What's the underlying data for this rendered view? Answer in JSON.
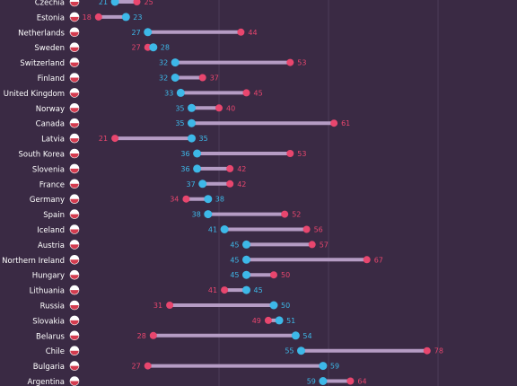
{
  "theme": {
    "background": "#3a2a44",
    "gridline": "#4c3c58",
    "connector": "#b59cc4",
    "blue": "#3db8e8",
    "red": "#e8466e",
    "label": "#ffffff"
  },
  "chart_data": {
    "type": "dumbbell",
    "title": "",
    "xlabel": "",
    "ylabel": "",
    "grid": true,
    "xlim": [
      0,
      100
    ],
    "series": [
      {
        "color": "#3db8e8"
      },
      {
        "color": "#e8466e"
      }
    ],
    "rows": [
      {
        "country": "Czechia",
        "flag": "czechia-flag",
        "blue": 21,
        "red": 25
      },
      {
        "country": "Estonia",
        "flag": "estonia-flag",
        "blue": 23,
        "red": 18
      },
      {
        "country": "Netherlands",
        "flag": "netherlands-flag",
        "blue": 27,
        "red": 44
      },
      {
        "country": "Sweden",
        "flag": "sweden-flag",
        "blue": 28,
        "red": 27
      },
      {
        "country": "Switzerland",
        "flag": "switzerland-flag",
        "blue": 32,
        "red": 53
      },
      {
        "country": "Finland",
        "flag": "finland-flag",
        "blue": 32,
        "red": 37
      },
      {
        "country": "United Kingdom",
        "flag": "united-kingdom-flag",
        "blue": 33,
        "red": 45
      },
      {
        "country": "Norway",
        "flag": "norway-flag",
        "blue": 35,
        "red": 40
      },
      {
        "country": "Canada",
        "flag": "canada-flag",
        "blue": 35,
        "red": 61
      },
      {
        "country": "Latvia",
        "flag": "latvia-flag",
        "blue": 35,
        "red": 21
      },
      {
        "country": "South Korea",
        "flag": "south-korea-flag",
        "blue": 36,
        "red": 53
      },
      {
        "country": "Slovenia",
        "flag": "slovenia-flag",
        "blue": 36,
        "red": 42
      },
      {
        "country": "France",
        "flag": "france-flag",
        "blue": 37,
        "red": 42
      },
      {
        "country": "Germany",
        "flag": "germany-flag",
        "blue": 38,
        "red": 34
      },
      {
        "country": "Spain",
        "flag": "spain-flag",
        "blue": 38,
        "red": 52
      },
      {
        "country": "Iceland",
        "flag": "iceland-flag",
        "blue": 41,
        "red": 56
      },
      {
        "country": "Austria",
        "flag": "austria-flag",
        "blue": 45,
        "red": 57
      },
      {
        "country": "Northern Ireland",
        "flag": "northern-ireland-flag",
        "blue": 45,
        "red": 67
      },
      {
        "country": "Hungary",
        "flag": "hungary-flag",
        "blue": 45,
        "red": 50
      },
      {
        "country": "Lithuania",
        "flag": "lithuania-flag",
        "blue": 45,
        "red": 41
      },
      {
        "country": "Russia",
        "flag": "russia-flag",
        "blue": 50,
        "red": 31
      },
      {
        "country": "Slovakia",
        "flag": "slovakia-flag",
        "blue": 51,
        "red": 49
      },
      {
        "country": "Belarus",
        "flag": "belarus-flag",
        "blue": 54,
        "red": 28
      },
      {
        "country": "Chile",
        "flag": "chile-flag",
        "blue": 55,
        "red": 78
      },
      {
        "country": "Bulgaria",
        "flag": "bulgaria-flag",
        "blue": 59,
        "red": 27
      },
      {
        "country": "Argentina",
        "flag": "argentina-flag",
        "blue": 59,
        "red": 64
      }
    ]
  }
}
